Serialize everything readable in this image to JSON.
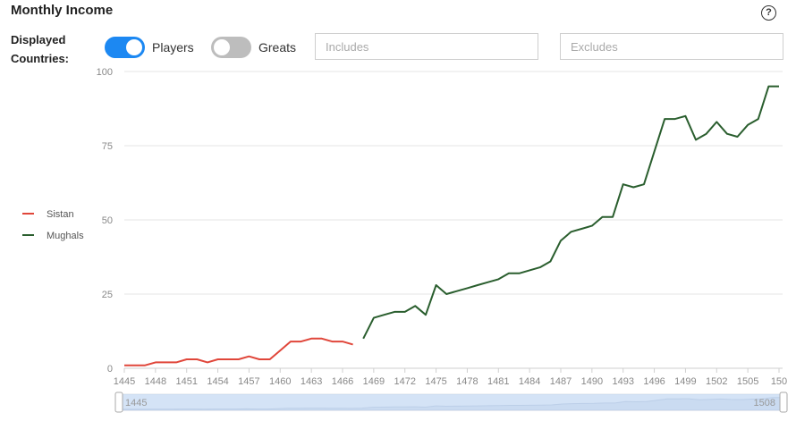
{
  "header": {
    "title": "Monthly Income",
    "help_icon": "question-mark-icon",
    "help_glyph": "?"
  },
  "filters": {
    "label_line1": "Displayed",
    "label_line2": "Countries:",
    "players_toggle": {
      "label": "Players",
      "on": true
    },
    "greats_toggle": {
      "label": "Greats",
      "on": false
    },
    "includes_placeholder": "Includes",
    "excludes_placeholder": "Excludes"
  },
  "colors": {
    "accent": "#1c88f2",
    "sistan": "#e0463a",
    "mughals": "#2a5e2e"
  },
  "chart_data": {
    "type": "line",
    "title": "",
    "xlabel": "",
    "ylabel": "",
    "ylim": [
      0,
      100
    ],
    "xlim": [
      1445,
      1508
    ],
    "y_ticks": [
      "0",
      "25",
      "50",
      "75",
      "100"
    ],
    "x_ticks": [
      "1445",
      "1448",
      "1451",
      "1454",
      "1457",
      "1460",
      "1463",
      "1466",
      "1469",
      "1472",
      "1475",
      "1478",
      "1481",
      "1484",
      "1487",
      "1490",
      "1493",
      "1496",
      "1499",
      "1502",
      "1505",
      "150"
    ],
    "grid": true,
    "legend_position": "left",
    "series": [
      {
        "name": "Sistan",
        "color": "#e0463a",
        "points": [
          [
            1445,
            1
          ],
          [
            1446,
            1
          ],
          [
            1447,
            1
          ],
          [
            1448,
            2
          ],
          [
            1449,
            2
          ],
          [
            1450,
            2
          ],
          [
            1451,
            3
          ],
          [
            1452,
            3
          ],
          [
            1453,
            2
          ],
          [
            1454,
            3
          ],
          [
            1455,
            3
          ],
          [
            1456,
            3
          ],
          [
            1457,
            4
          ],
          [
            1458,
            3
          ],
          [
            1459,
            3
          ],
          [
            1460,
            6
          ],
          [
            1461,
            9
          ],
          [
            1462,
            9
          ],
          [
            1463,
            10
          ],
          [
            1464,
            10
          ],
          [
            1465,
            9
          ],
          [
            1466,
            9
          ],
          [
            1467,
            8
          ]
        ]
      },
      {
        "name": "Mughals",
        "color": "#2a5e2e",
        "points": [
          [
            1468,
            10
          ],
          [
            1469,
            17
          ],
          [
            1470,
            18
          ],
          [
            1471,
            19
          ],
          [
            1472,
            19
          ],
          [
            1473,
            21
          ],
          [
            1474,
            18
          ],
          [
            1475,
            28
          ],
          [
            1476,
            25
          ],
          [
            1477,
            26
          ],
          [
            1478,
            27
          ],
          [
            1479,
            28
          ],
          [
            1480,
            29
          ],
          [
            1481,
            30
          ],
          [
            1482,
            32
          ],
          [
            1483,
            32
          ],
          [
            1484,
            33
          ],
          [
            1485,
            34
          ],
          [
            1486,
            36
          ],
          [
            1487,
            43
          ],
          [
            1488,
            46
          ],
          [
            1489,
            47
          ],
          [
            1490,
            48
          ],
          [
            1491,
            51
          ],
          [
            1492,
            51
          ],
          [
            1493,
            62
          ],
          [
            1494,
            61
          ],
          [
            1495,
            62
          ],
          [
            1496,
            73
          ],
          [
            1497,
            84
          ],
          [
            1498,
            84
          ],
          [
            1499,
            85
          ],
          [
            1500,
            77
          ],
          [
            1501,
            79
          ],
          [
            1502,
            83
          ],
          [
            1503,
            79
          ],
          [
            1504,
            78
          ],
          [
            1505,
            82
          ],
          [
            1506,
            84
          ],
          [
            1507,
            95
          ],
          [
            1508,
            95
          ]
        ]
      }
    ],
    "slider": {
      "start_label": "1445",
      "end_label": "1508"
    }
  }
}
